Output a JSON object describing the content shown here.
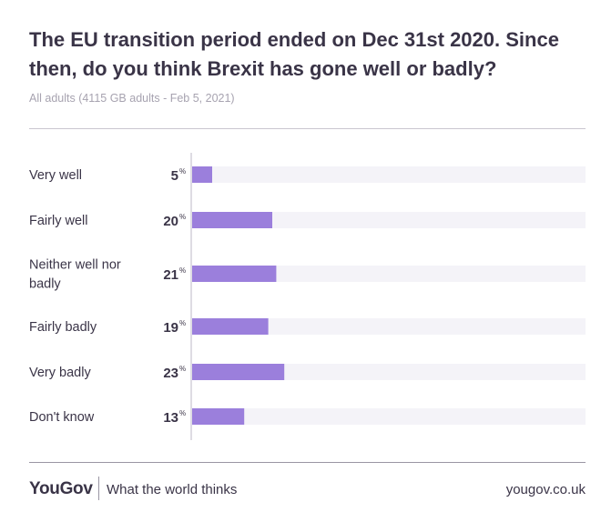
{
  "title": "The EU transition period ended on Dec 31st 2020. Since then, do you think Brexit has gone well or badly?",
  "subtitle": "All adults (4115 GB adults - Feb 5, 2021)",
  "chart_data": {
    "type": "bar",
    "orientation": "horizontal",
    "categories": [
      [
        "Very well"
      ],
      [
        "Fairly well"
      ],
      [
        "Neither well nor",
        "badly"
      ],
      [
        "Fairly badly"
      ],
      [
        "Very badly"
      ],
      [
        "Don't know"
      ]
    ],
    "values": [
      5,
      20,
      21,
      19,
      23,
      13
    ],
    "unit": "%",
    "xlim": [
      0,
      100
    ],
    "bar_color": "#9b7fdc",
    "track_color": "#f4f3f8"
  },
  "footer": {
    "logo": "YouGov",
    "tagline": "What the world thinks",
    "url": "yougov.co.uk"
  }
}
